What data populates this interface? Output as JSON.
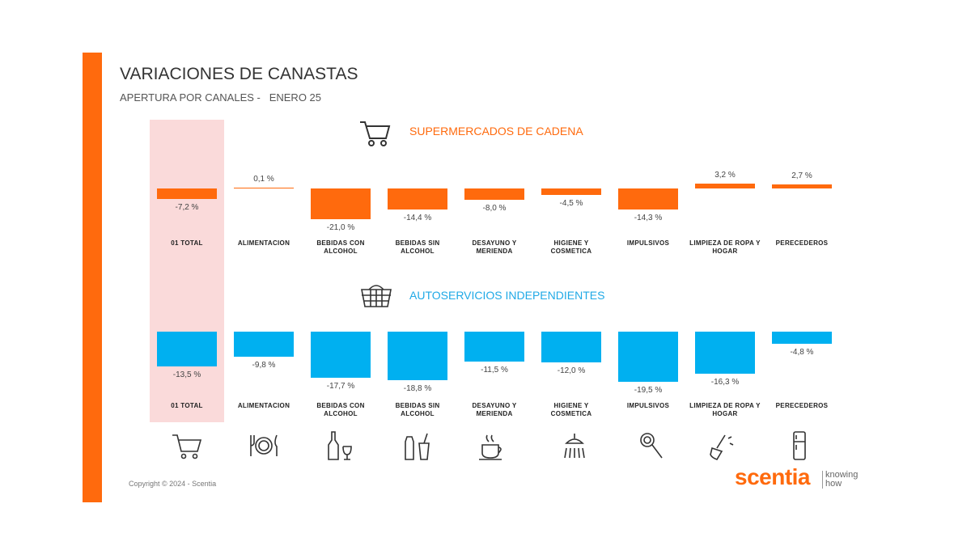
{
  "header": {
    "title": "VARIACIONES DE CANASTAS",
    "subtitle": "APERTURA POR CANALES -   ENERO 25"
  },
  "chart_data": [
    {
      "type": "bar",
      "title": "SUPERMERCADOS DE CADENA",
      "color": "#ff6a0d",
      "categories": [
        "01 TOTAL",
        "ALIMENTACION",
        "BEBIDAS CON ALCOHOL",
        "BEBIDAS SIN ALCOHOL",
        "DESAYUNO Y MERIENDA",
        "HIGIENE Y COSMETICA",
        "IMPULSIVOS",
        "LIMPIEZA DE ROPA Y HOGAR",
        "PERECEDEROS"
      ],
      "values": [
        -7.2,
        0.1,
        -21.0,
        -14.4,
        -8.0,
        -4.5,
        -14.3,
        3.2,
        2.7
      ],
      "value_labels": [
        "-7,2 %",
        "0,1 %",
        "-21,0 %",
        "-14,4 %",
        "-8,0 %",
        "-4,5 %",
        "-14,3 %",
        "3,2 %",
        "2,7 %"
      ]
    },
    {
      "type": "bar",
      "title": "AUTOSERVICIOS INDEPENDIENTES",
      "color": "#00b0f0",
      "categories": [
        "01 TOTAL",
        "ALIMENTACION",
        "BEBIDAS CON ALCOHOL",
        "BEBIDAS SIN ALCOHOL",
        "DESAYUNO Y MERIENDA",
        "HIGIENE Y COSMETICA",
        "IMPULSIVOS",
        "LIMPIEZA DE ROPA Y HOGAR",
        "PERECEDEROS"
      ],
      "values": [
        -13.5,
        -9.8,
        -17.7,
        -18.8,
        -11.5,
        -12.0,
        -19.5,
        -16.3,
        -4.8
      ],
      "value_labels": [
        "-13,5 %",
        "-9,8 %",
        "-17,7 %",
        "-18,8 %",
        "-11,5 %",
        "-12,0 %",
        "-19,5 %",
        "-16,3 %",
        "-4,8 %"
      ]
    }
  ],
  "footer": {
    "copyright": "Copyright © 2024 - Scentia",
    "logo": "scentia",
    "tagline": "knowing how"
  }
}
